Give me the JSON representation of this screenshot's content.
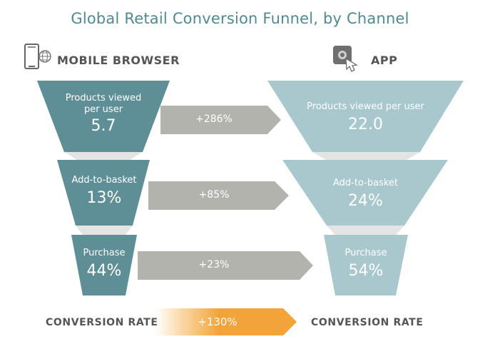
{
  "title": "Global Retail Conversion Funnel, by Channel",
  "channels": {
    "mobile": {
      "name": "MOBILE BROWSER",
      "icon": "smartphone-globe-icon",
      "color": "#5e8f96"
    },
    "app": {
      "name": "APP",
      "icon": "tap-app-icon",
      "color": "#a9c8cd"
    }
  },
  "stages": [
    {
      "mobile_label": "Products viewed per user",
      "mobile_value": "5.7",
      "app_label": "Products viewed per user",
      "app_value": "22.0",
      "uplift": "+286%"
    },
    {
      "mobile_label": "Add-to-basket",
      "mobile_value": "13%",
      "app_label": "Add-to-basket",
      "app_value": "24%",
      "uplift": "+85%"
    },
    {
      "mobile_label": "Purchase",
      "mobile_value": "44%",
      "app_label": "Purchase",
      "app_value": "54%",
      "uplift": "+23%"
    }
  ],
  "conversion": {
    "left_label": "CONVERSION RATE",
    "right_label": "CONVERSION RATE",
    "uplift": "+130%",
    "arrow_color": "#f2a33a"
  },
  "colors": {
    "arrow_gray": "#b3b3ad",
    "connector_gray": "#e4e4e4",
    "title": "#4f8a93"
  }
}
